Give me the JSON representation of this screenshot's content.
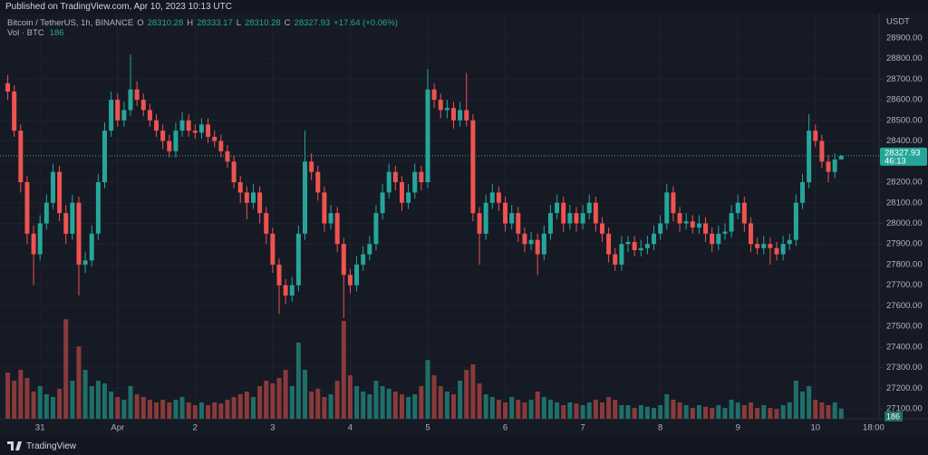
{
  "header": {
    "published": "Published on TradingView.com, Apr 10, 2023 10:13 UTC"
  },
  "footer": {
    "brand": "TradingView"
  },
  "chart_data": {
    "type": "candlestick",
    "symbol": "Bitcoin / TetherUS, 1h, BINANCE",
    "legend_labels": [
      "O",
      "H",
      "L",
      "C"
    ],
    "change_label": "+17.64 (+0.06%)",
    "volume_label": "Vol · BTC",
    "axis_unit": "USDT",
    "countdown": "46:13",
    "up_color": "#26a69a",
    "down_color": "#ef5350",
    "volume_up_color": "#1f6f69",
    "volume_down_color": "#8a3a3b",
    "grid": true,
    "ylim": [
      27052,
      29005
    ],
    "yticks": [
      {
        "value": 27100,
        "label": "27100.00"
      },
      {
        "value": 27200,
        "label": "27200.00"
      },
      {
        "value": 27300,
        "label": "27300.00"
      },
      {
        "value": 27400,
        "label": "27400.00"
      },
      {
        "value": 27500,
        "label": "27500.00"
      },
      {
        "value": 27600,
        "label": "27600.00"
      },
      {
        "value": 27700,
        "label": "27700.00"
      },
      {
        "value": 27800,
        "label": "27800.00"
      },
      {
        "value": 27900,
        "label": "27900.00"
      },
      {
        "value": 28000,
        "label": "28000.00"
      },
      {
        "value": 28100,
        "label": "28100.00"
      },
      {
        "value": 28200,
        "label": "28200.00"
      },
      {
        "value": 28300,
        "label": "28300.00"
      },
      {
        "value": 28400,
        "label": "28400.00"
      },
      {
        "value": 28500,
        "label": "28500.00"
      },
      {
        "value": 28600,
        "label": "28600.00"
      },
      {
        "value": 28700,
        "label": "28700.00"
      },
      {
        "value": 28800,
        "label": "28800.00"
      },
      {
        "value": 28900,
        "label": "28900.00"
      }
    ],
    "xlim": [
      -1.2,
      134.85
    ],
    "xticks": [
      {
        "value": 5,
        "label": "31"
      },
      {
        "value": 17,
        "label": "Apr"
      },
      {
        "value": 29,
        "label": "2"
      },
      {
        "value": 41,
        "label": "3"
      },
      {
        "value": 53,
        "label": "4"
      },
      {
        "value": 65,
        "label": "5"
      },
      {
        "value": 77,
        "label": "6"
      },
      {
        "value": 89,
        "label": "7"
      },
      {
        "value": 101,
        "label": "8"
      },
      {
        "value": 113,
        "label": "9"
      },
      {
        "value": 125,
        "label": "10"
      },
      {
        "value": 134,
        "label": "18:00"
      }
    ],
    "vlim": [
      0,
      4000
    ],
    "open": [
      28680,
      28640,
      28450,
      28200,
      27950,
      27850,
      28000,
      28100,
      28250,
      28050,
      27950,
      28100,
      27800,
      27820,
      27950,
      28200,
      28450,
      28600,
      28500,
      28550,
      28650,
      28600,
      28550,
      28500,
      28450,
      28400,
      28350,
      28450,
      28500,
      28450,
      28440,
      28480,
      28420,
      28400,
      28350,
      28300,
      28200,
      28150,
      28100,
      28150,
      28050,
      27950,
      27800,
      27700,
      27650,
      27700,
      27950,
      28300,
      28250,
      28150,
      28000,
      28050,
      27900,
      27750,
      27700,
      27800,
      27850,
      27900,
      28050,
      28150,
      28250,
      28200,
      28100,
      28150,
      28250,
      28200,
      28650,
      28600,
      28550,
      28560,
      28500,
      28550,
      28500,
      28050,
      27950,
      28100,
      28150,
      28100,
      28000,
      28050,
      27950,
      27900,
      27920,
      27850,
      27950,
      28050,
      28100,
      28000,
      28050,
      28000,
      28050,
      28100,
      28000,
      27950,
      27850,
      27800,
      27900,
      27910,
      27870,
      27880,
      27900,
      27950,
      28000,
      28150,
      28050,
      28000,
      28010,
      27980,
      28000,
      27950,
      27900,
      27950,
      27960,
      28050,
      28100,
      28000,
      27900,
      27880,
      27900,
      27880,
      27850,
      27900,
      27920,
      28100,
      28200,
      28450,
      28400,
      28300,
      28250,
      28310.28
    ],
    "high": [
      28720,
      28670,
      28480,
      28230,
      27990,
      28040,
      28140,
      28290,
      28280,
      28090,
      28140,
      28130,
      27860,
      27990,
      28240,
      28490,
      28640,
      28630,
      28590,
      28820,
      28690,
      28630,
      28580,
      28530,
      28480,
      28430,
      28490,
      28540,
      28530,
      28480,
      28510,
      28510,
      28450,
      28430,
      28380,
      28330,
      28230,
      28180,
      28190,
      28180,
      28080,
      27980,
      27830,
      27730,
      27740,
      27990,
      28450,
      28340,
      28280,
      28180,
      28090,
      28080,
      27930,
      27780,
      27840,
      27890,
      27940,
      28090,
      28190,
      28290,
      28280,
      28230,
      28190,
      28290,
      28280,
      28750,
      28680,
      28630,
      28600,
      28590,
      28590,
      28730,
      28530,
      28080,
      28140,
      28190,
      28180,
      28130,
      28090,
      28080,
      27980,
      27960,
      27950,
      27990,
      28090,
      28140,
      28130,
      28090,
      28080,
      28090,
      28140,
      28130,
      28030,
      27980,
      27880,
      27940,
      27940,
      27940,
      27920,
      27940,
      27990,
      28040,
      28190,
      28180,
      28080,
      28050,
      28040,
      28040,
      28030,
      27980,
      27990,
      28000,
      28090,
      28140,
      28130,
      28030,
      27930,
      27940,
      27930,
      27910,
      27940,
      27950,
      28140,
      28240,
      28530,
      28480,
      28430,
      28330,
      28340,
      28333.17
    ],
    "low": [
      28600,
      28420,
      28150,
      27900,
      27700,
      27820,
      27970,
      28070,
      28010,
      27900,
      27920,
      27650,
      27760,
      27790,
      27920,
      28170,
      28420,
      28470,
      28470,
      28520,
      28570,
      28520,
      28470,
      28420,
      28360,
      28320,
      28320,
      28420,
      28420,
      28410,
      28410,
      28390,
      28370,
      28320,
      28270,
      28170,
      28100,
      28020,
      28070,
      28000,
      27900,
      27760,
      27560,
      27610,
      27620,
      27670,
      27920,
      28210,
      28110,
      27960,
      27970,
      27860,
      27540,
      27660,
      27670,
      27770,
      27820,
      27870,
      28020,
      28120,
      28160,
      28060,
      28070,
      28120,
      28160,
      28170,
      28560,
      28510,
      28510,
      28460,
      28470,
      28470,
      28010,
      27800,
      27920,
      28070,
      28060,
      27960,
      27970,
      27910,
      27860,
      27870,
      27750,
      27820,
      27920,
      28020,
      27960,
      27970,
      27960,
      27970,
      28020,
      27960,
      27910,
      27810,
      27770,
      27770,
      27860,
      27840,
      27840,
      27850,
      27870,
      27920,
      27970,
      28010,
      27960,
      27970,
      27950,
      27950,
      27910,
      27860,
      27870,
      27920,
      27930,
      28020,
      27960,
      27860,
      27850,
      27850,
      27800,
      27820,
      27820,
      27870,
      27890,
      28070,
      28170,
      28370,
      28270,
      28200,
      28220,
      28310.28
    ],
    "close": [
      28640,
      28450,
      28200,
      27950,
      27850,
      28000,
      28100,
      28250,
      28050,
      27950,
      28100,
      27800,
      27820,
      27950,
      28200,
      28450,
      28600,
      28500,
      28550,
      28650,
      28600,
      28550,
      28500,
      28450,
      28400,
      28350,
      28450,
      28500,
      28450,
      28440,
      28480,
      28420,
      28400,
      28350,
      28300,
      28200,
      28150,
      28100,
      28150,
      28050,
      27950,
      27800,
      27700,
      27650,
      27700,
      27950,
      28300,
      28250,
      28150,
      28000,
      28050,
      27900,
      27750,
      27700,
      27800,
      27850,
      27900,
      28050,
      28150,
      28250,
      28200,
      28100,
      28150,
      28250,
      28200,
      28650,
      28600,
      28550,
      28560,
      28500,
      28550,
      28500,
      28050,
      27950,
      28100,
      28150,
      28100,
      28000,
      28050,
      27950,
      27900,
      27920,
      27850,
      27950,
      28050,
      28100,
      28000,
      28050,
      28000,
      28050,
      28100,
      28000,
      27950,
      27850,
      27800,
      27900,
      27910,
      27870,
      27880,
      27900,
      27950,
      28000,
      28150,
      28050,
      28000,
      28010,
      27980,
      28000,
      27950,
      27900,
      27950,
      27960,
      28050,
      28100,
      28000,
      27900,
      27880,
      27900,
      27880,
      27850,
      27900,
      27920,
      28100,
      28200,
      28450,
      28400,
      28300,
      28250,
      28310.28,
      28327.93
    ],
    "volume": [
      850,
      700,
      900,
      750,
      500,
      600,
      450,
      400,
      550,
      1830,
      700,
      1330,
      900,
      600,
      700,
      650,
      500,
      400,
      350,
      600,
      450,
      400,
      350,
      300,
      350,
      300,
      350,
      400,
      300,
      250,
      300,
      250,
      300,
      280,
      350,
      400,
      450,
      500,
      400,
      600,
      700,
      650,
      750,
      900,
      600,
      1400,
      900,
      500,
      550,
      400,
      450,
      700,
      1800,
      800,
      600,
      500,
      450,
      700,
      600,
      550,
      500,
      450,
      400,
      450,
      600,
      1080,
      800,
      600,
      500,
      450,
      700,
      900,
      1000,
      650,
      450,
      400,
      350,
      300,
      400,
      350,
      300,
      350,
      500,
      400,
      350,
      300,
      250,
      300,
      280,
      250,
      300,
      350,
      300,
      400,
      350,
      250,
      250,
      200,
      250,
      220,
      200,
      250,
      450,
      350,
      300,
      250,
      200,
      250,
      220,
      200,
      250,
      200,
      350,
      300,
      250,
      300,
      200,
      250,
      200,
      180,
      250,
      300,
      700,
      500,
      600,
      350,
      300,
      250,
      300,
      186
    ]
  }
}
